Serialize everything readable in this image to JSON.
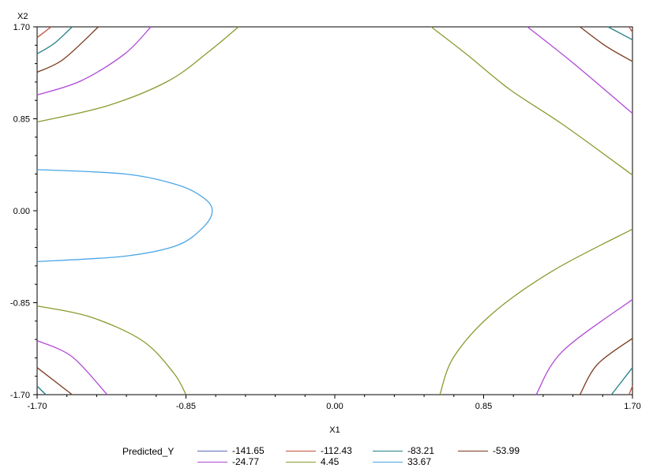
{
  "chart_data": {
    "type": "contour",
    "xlabel": "X1",
    "ylabel": "X2",
    "xlim": [
      -1.7,
      1.7
    ],
    "ylim": [
      -1.7,
      1.7
    ],
    "xticks": [
      "-1.70",
      "-0.85",
      "0.00",
      "0.85",
      "1.70"
    ],
    "yticks": [
      "-1.70",
      "-0.85",
      "0.00",
      "0.85",
      "1.70"
    ],
    "grid": false,
    "legend": {
      "title": "Predicted_Y",
      "position": "bottom",
      "entries": [
        {
          "label": "-141.65",
          "color": "#5a6ab8"
        },
        {
          "label": "-112.43",
          "color": "#c0503a"
        },
        {
          "label": "-83.21",
          "color": "#1f7f86"
        },
        {
          "label": "-53.99",
          "color": "#7a3a1c"
        },
        {
          "label": "-24.77",
          "color": "#b04ad6"
        },
        {
          "label": "4.45",
          "color": "#8a9a2e"
        },
        {
          "label": "33.67",
          "color": "#4aa6e6"
        }
      ]
    },
    "contours": [
      {
        "level": "4.45",
        "color": "#8a9a2e",
        "lines": [
          [
            [
              -1.7,
              0.82
            ],
            [
              -1.3,
              0.97
            ],
            [
              -0.95,
              1.2
            ],
            [
              -0.72,
              1.47
            ],
            [
              -0.55,
              1.7
            ]
          ],
          [
            [
              0.55,
              1.7
            ],
            [
              0.75,
              1.45
            ],
            [
              1.0,
              1.12
            ],
            [
              1.3,
              0.8
            ],
            [
              1.7,
              0.33
            ]
          ],
          [
            [
              -1.7,
              -0.88
            ],
            [
              -1.4,
              -0.98
            ],
            [
              -1.1,
              -1.2
            ],
            [
              -0.92,
              -1.5
            ],
            [
              -0.85,
              -1.7
            ]
          ],
          [
            [
              0.6,
              -1.7
            ],
            [
              0.68,
              -1.35
            ],
            [
              0.9,
              -0.95
            ],
            [
              1.25,
              -0.55
            ],
            [
              1.7,
              -0.17
            ]
          ]
        ]
      },
      {
        "level": "-24.77",
        "color": "#b04ad6",
        "lines": [
          [
            [
              -1.7,
              1.07
            ],
            [
              -1.45,
              1.2
            ],
            [
              -1.2,
              1.45
            ],
            [
              -1.05,
              1.7
            ]
          ],
          [
            [
              1.1,
              1.7
            ],
            [
              1.35,
              1.38
            ],
            [
              1.7,
              0.9
            ]
          ],
          [
            [
              -1.7,
              -1.2
            ],
            [
              -1.5,
              -1.35
            ],
            [
              -1.3,
              -1.7
            ]
          ],
          [
            [
              1.15,
              -1.7
            ],
            [
              1.3,
              -1.3
            ],
            [
              1.7,
              -0.82
            ]
          ]
        ]
      },
      {
        "level": "-53.99",
        "color": "#7a3a1c",
        "lines": [
          [
            [
              -1.7,
              1.28
            ],
            [
              -1.55,
              1.4
            ],
            [
              -1.35,
              1.7
            ]
          ],
          [
            [
              1.4,
              1.7
            ],
            [
              1.55,
              1.52
            ],
            [
              1.7,
              1.38
            ]
          ],
          [
            [
              -1.7,
              -1.45
            ],
            [
              -1.5,
              -1.7
            ]
          ],
          [
            [
              1.4,
              -1.7
            ],
            [
              1.5,
              -1.42
            ],
            [
              1.7,
              -1.18
            ]
          ]
        ]
      },
      {
        "level": "-83.21",
        "color": "#1f7f86",
        "lines": [
          [
            [
              -1.7,
              1.45
            ],
            [
              -1.6,
              1.55
            ],
            [
              -1.5,
              1.7
            ]
          ],
          [
            [
              1.56,
              1.7
            ],
            [
              1.7,
              1.58
            ]
          ],
          [
            [
              -1.7,
              -1.62
            ],
            [
              -1.65,
              -1.7
            ]
          ],
          [
            [
              1.58,
              -1.7
            ],
            [
              1.7,
              -1.45
            ]
          ]
        ]
      },
      {
        "level": "-112.43",
        "color": "#c0503a",
        "lines": [
          [
            [
              -1.7,
              1.6
            ],
            [
              -1.62,
              1.7
            ]
          ],
          [
            [
              1.68,
              1.7
            ],
            [
              1.7,
              1.65
            ]
          ],
          [
            [
              1.68,
              -1.7
            ],
            [
              1.7,
              -1.62
            ]
          ]
        ]
      },
      {
        "level": "33.67",
        "color": "#4aa6e6",
        "lines": [
          [
            [
              -1.7,
              0.38
            ],
            [
              -1.2,
              0.34
            ],
            [
              -0.9,
              0.24
            ],
            [
              -0.75,
              0.12
            ],
            [
              -0.7,
              0.0
            ],
            [
              -0.75,
              -0.15
            ],
            [
              -0.9,
              -0.32
            ],
            [
              -1.2,
              -0.42
            ],
            [
              -1.7,
              -0.47
            ]
          ]
        ]
      }
    ]
  }
}
